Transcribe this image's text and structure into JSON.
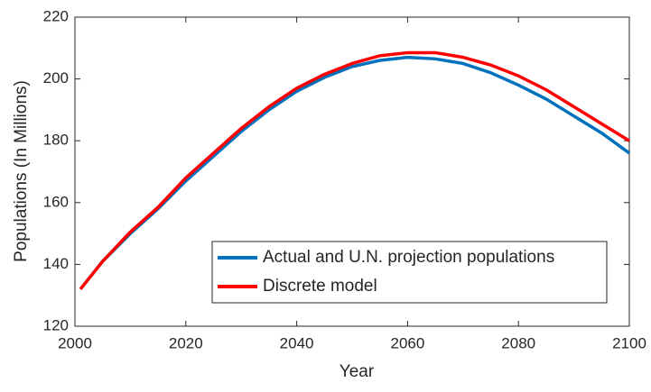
{
  "chart_data": {
    "type": "line",
    "xlabel": "Year",
    "ylabel": "Populations (In Millions)",
    "x": [
      2001,
      2005,
      2010,
      2015,
      2020,
      2025,
      2030,
      2035,
      2040,
      2045,
      2050,
      2055,
      2060,
      2065,
      2070,
      2075,
      2080,
      2085,
      2090,
      2095,
      2100
    ],
    "series": [
      {
        "name": "Actual and U.N. projection populations",
        "color": "#0072bd",
        "values": [
          132,
          141,
          150,
          158,
          167,
          175,
          183,
          190,
          196,
          200.5,
          204,
          206,
          207,
          206.5,
          205,
          202,
          198,
          193.5,
          188,
          182.5,
          176
        ]
      },
      {
        "name": "Discrete model",
        "color": "#ff0000",
        "values": [
          132,
          141,
          150.5,
          158.5,
          168,
          176,
          184,
          191,
          197,
          201.5,
          205,
          207.5,
          208.5,
          208.5,
          207,
          204.5,
          201,
          196.5,
          191,
          185.5,
          180
        ]
      }
    ],
    "xlim": [
      2000,
      2100
    ],
    "xticks": [
      2000,
      2020,
      2040,
      2060,
      2080,
      2100
    ],
    "ylim": [
      120,
      220
    ],
    "yticks": [
      120,
      140,
      160,
      180,
      200,
      220
    ],
    "grid": false,
    "legend": "lower right"
  }
}
